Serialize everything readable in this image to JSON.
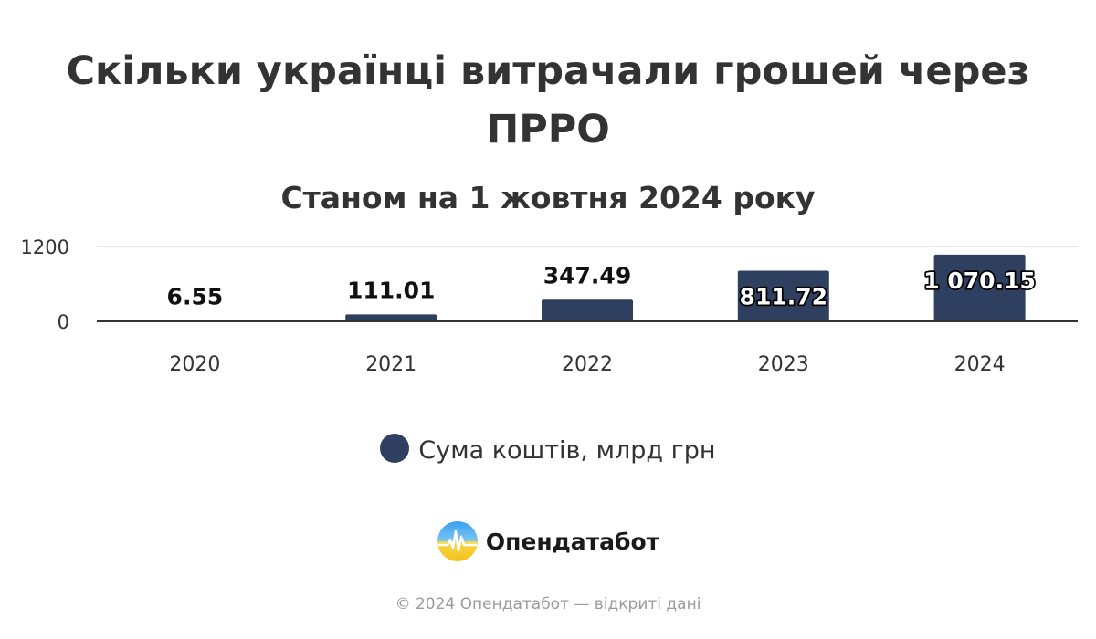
{
  "chart_data": {
    "type": "bar",
    "title": "Скільки українці витрачали грошей через ПРРО",
    "subtitle": "Станом на 1 жовтня 2024 року",
    "categories": [
      "2020",
      "2021",
      "2022",
      "2023",
      "2024"
    ],
    "series": [
      {
        "name": "Сума коштів, млрд грн",
        "values": [
          6.55,
          111.01,
          347.49,
          811.72,
          1070.15
        ],
        "data_labels": [
          "6.55",
          "111.01",
          "347.49",
          "811.72",
          "1 070.15"
        ]
      }
    ],
    "ylim": [
      0,
      1200
    ],
    "yticks": [
      "0",
      "1200"
    ],
    "grid": true,
    "legend_position": "bottom",
    "bar_color": "#2e3f5f"
  },
  "brand": {
    "name": "Опендатабот"
  },
  "footer": {
    "text": "© 2024 Опендатабот — відкриті дані"
  }
}
